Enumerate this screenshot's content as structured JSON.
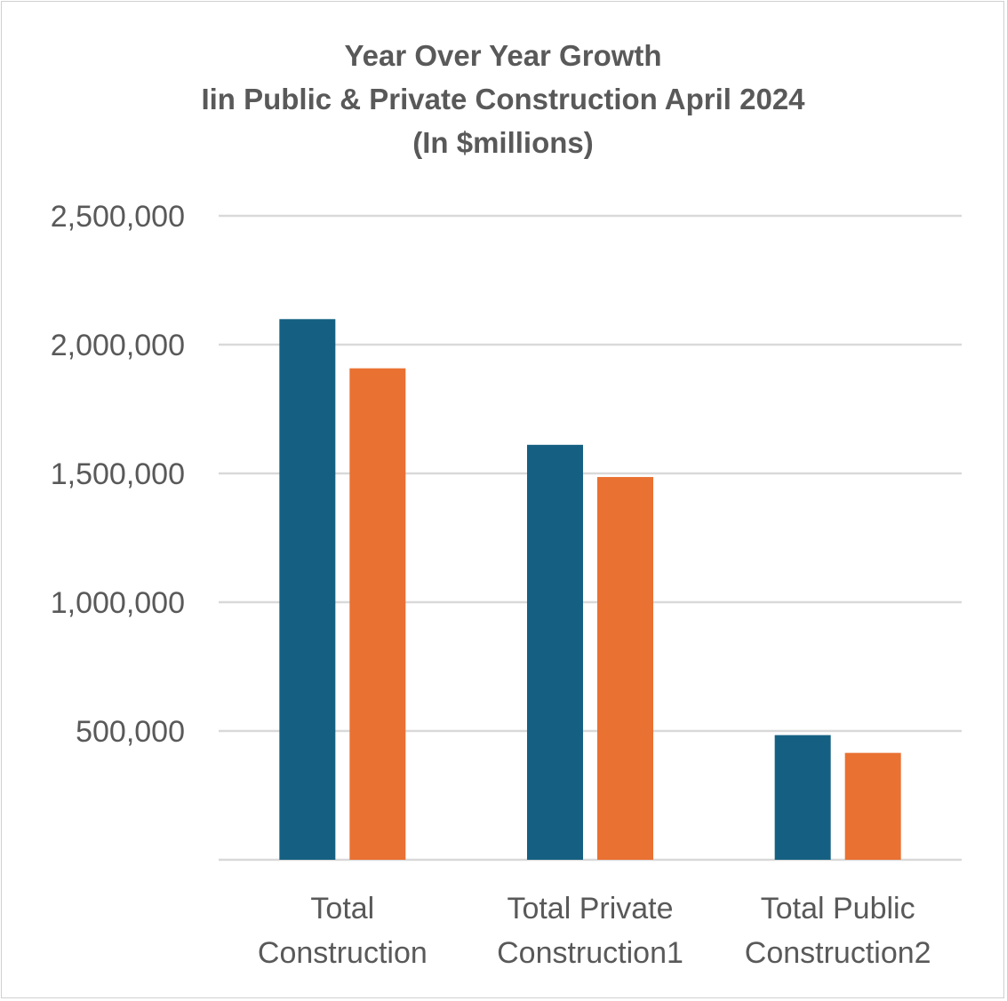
{
  "chart_data": {
    "type": "bar",
    "title": [
      "Year Over Year Growth",
      "Iin Public & Private Construction April 2024",
      "(In $millions)"
    ],
    "categories": [
      [
        "Total",
        "Construction"
      ],
      [
        "Total Private",
        "Construction1"
      ],
      [
        "Total Public",
        "Construction2"
      ]
    ],
    "series": [
      {
        "values": [
          2099000,
          1611000,
          484000
        ],
        "color": "#156082"
      },
      {
        "values": [
          1908000,
          1486000,
          415000
        ],
        "color": "#E97132"
      }
    ],
    "yticks": [
      "",
      "500,000",
      "1,000,000",
      "1,500,000",
      "2,000,000",
      "2,500,000"
    ],
    "ylim": [
      0,
      2500000
    ],
    "grid": true,
    "legend": "none",
    "xlabel": "",
    "ylabel": ""
  }
}
